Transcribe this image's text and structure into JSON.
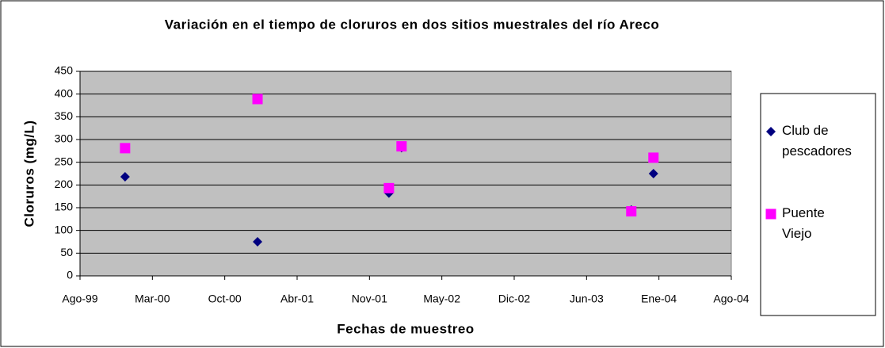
{
  "chart_data": {
    "type": "scatter",
    "title": "Variación en el tiempo de cloruros en dos sitios muestrales del río Areco",
    "x_label": "Fechas de muestreo",
    "y_label": "Cloruros (mg/L)",
    "series": [
      {
        "name": "Club de pescadores",
        "color": "#000080",
        "marker": "diamond",
        "x": [
          36505,
          36893,
          37278,
          37315,
          37988,
          38053
        ],
        "values": [
          218,
          75,
          182,
          282,
          145,
          225
        ]
      },
      {
        "name": "Puente Viejo",
        "color": "#ff00ff",
        "marker": "square",
        "x": [
          36505,
          36893,
          37278,
          37315,
          37988,
          38053
        ],
        "values": [
          281,
          389,
          193,
          285,
          142,
          260
        ]
      }
    ],
    "xlim": [
      36373,
      38281
    ],
    "xticks": [
      {
        "value": 36373,
        "label": "Ago-99"
      },
      {
        "value": 36585,
        "label": "Mar-00"
      },
      {
        "value": 36797,
        "label": "Oct-00"
      },
      {
        "value": 37009,
        "label": "Abr-01"
      },
      {
        "value": 37221,
        "label": "Nov-01"
      },
      {
        "value": 37433,
        "label": "May-02"
      },
      {
        "value": 37645,
        "label": "Dic-02"
      },
      {
        "value": 37857,
        "label": "Jun-03"
      },
      {
        "value": 38069,
        "label": "Ene-04"
      },
      {
        "value": 38281,
        "label": "Ago-04"
      }
    ],
    "ylim": [
      0,
      450
    ],
    "yticks": [
      0,
      50,
      100,
      150,
      200,
      250,
      300,
      350,
      400,
      450
    ],
    "grid": true,
    "legend": "right"
  }
}
